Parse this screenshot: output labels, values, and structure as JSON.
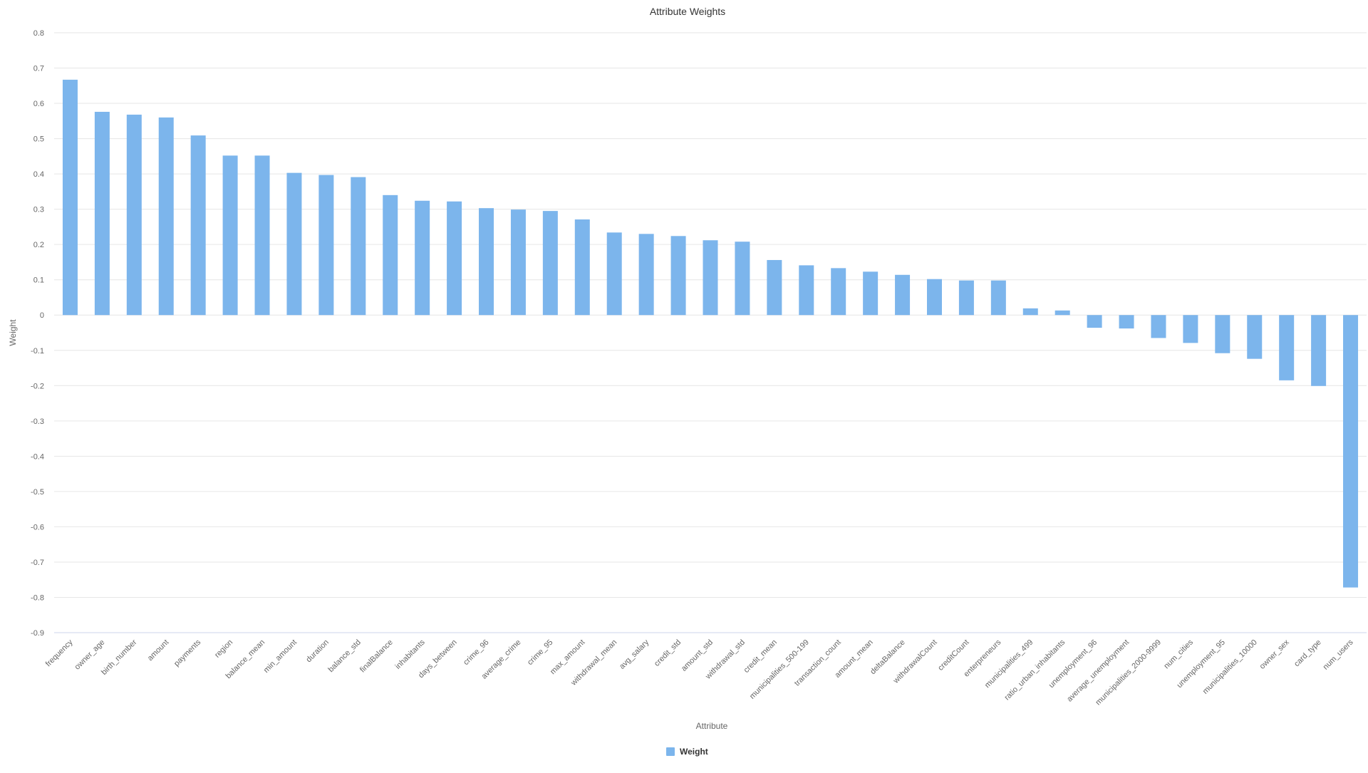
{
  "chart_data": {
    "type": "bar",
    "title": "Attribute Weights",
    "xlabel": "Attribute",
    "ylabel": "Weight",
    "ylim": [
      -0.9,
      0.8
    ],
    "yticks": [
      0.8,
      0.7,
      0.6,
      0.5,
      0.4,
      0.3,
      0.2,
      0.1,
      0,
      -0.1,
      -0.2,
      -0.3,
      -0.4,
      -0.5,
      -0.6,
      -0.7,
      -0.8,
      -0.9
    ],
    "grid": true,
    "legend_position": "bottom-center",
    "color": "#7cb5ec",
    "categories": [
      "frequency",
      "owner_age",
      "birth_number",
      "amount",
      "payments",
      "region",
      "balance_mean",
      "min_amount",
      "duration",
      "balance_std",
      "finalBalance",
      "inhabitants",
      "days_between",
      "crime_96",
      "average_crime",
      "crime_95",
      "max_amount",
      "withdrawal_mean",
      "avg_salary",
      "credit_std",
      "amount_std",
      "withdrawal_std",
      "credit_mean",
      "municipalities_500-199",
      "transaction_count",
      "amount_mean",
      "deltaBalance",
      "withdrawalCount",
      "creditCount",
      "enterpreneurs",
      "municipalities_499",
      "ratio_urban_inhabitants",
      "unemployment_96",
      "average_unemployment",
      "municipalities_2000-9999",
      "num_cities",
      "unemployment_95",
      "municipalities_10000",
      "owner_sex",
      "card_type",
      "num_users"
    ],
    "series": [
      {
        "name": "Weight",
        "values": [
          0.667,
          0.576,
          0.568,
          0.56,
          0.509,
          0.452,
          0.452,
          0.403,
          0.397,
          0.391,
          0.34,
          0.324,
          0.322,
          0.303,
          0.299,
          0.295,
          0.271,
          0.234,
          0.23,
          0.224,
          0.212,
          0.208,
          0.156,
          0.141,
          0.133,
          0.123,
          0.114,
          0.102,
          0.098,
          0.098,
          0.019,
          0.013,
          -0.036,
          -0.038,
          -0.065,
          -0.079,
          -0.108,
          -0.124,
          -0.185,
          -0.201,
          -0.772
        ]
      }
    ]
  }
}
